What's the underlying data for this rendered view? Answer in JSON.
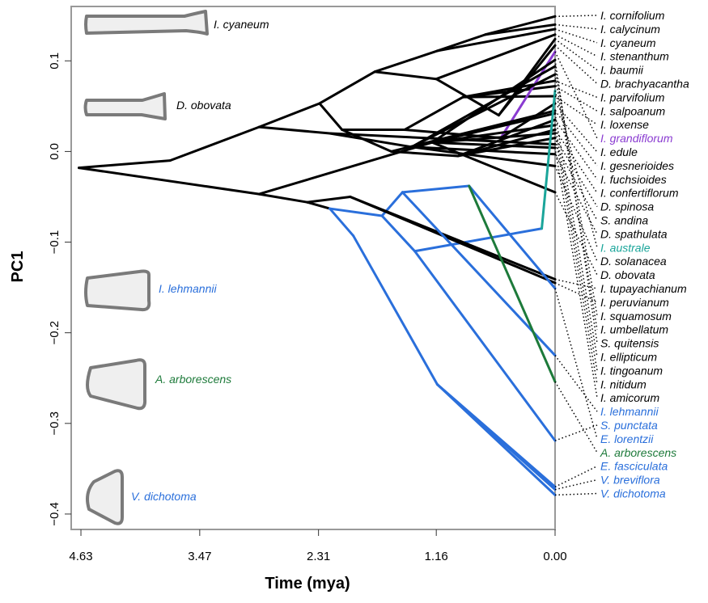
{
  "chart_data": {
    "type": "phenogram",
    "x_label": "Time (mya)",
    "y_label": "PC1",
    "xlim": [
      4.725,
      0
    ],
    "ylim": [
      -0.417,
      0.16
    ],
    "xticks": [
      4.63,
      3.47,
      2.31,
      1.16,
      {
        "value": 0,
        "label": "0.00"
      }
    ],
    "yticks": [
      {
        "value": -0.4,
        "label": "−0.4"
      },
      {
        "value": -0.3,
        "label": "−0.3"
      },
      {
        "value": -0.2,
        "label": "−0.2"
      },
      {
        "value": -0.1,
        "label": "−0.1"
      },
      {
        "value": 0,
        "label": "0.0"
      },
      0.1
    ],
    "branch_color": "#000000",
    "branches": [
      {
        "time": [
          4.65,
          3.76
        ],
        "pc1": [
          -0.018,
          -0.01
        ]
      },
      {
        "time": [
          4.65,
          2.89
        ],
        "pc1": [
          -0.018,
          -0.047
        ]
      },
      {
        "time": [
          3.76,
          2.89
        ],
        "pc1": [
          -0.01,
          0.027
        ]
      },
      {
        "time": [
          2.89,
          2.3
        ],
        "pc1": [
          0.027,
          0.053
        ]
      },
      {
        "time": [
          2.89,
          2.2
        ],
        "pc1": [
          0.027,
          0.02
        ]
      },
      {
        "time": [
          2.3,
          1.76
        ],
        "pc1": [
          0.053,
          0.088
        ]
      },
      {
        "time": [
          2.3,
          2.08
        ],
        "pc1": [
          0.053,
          0.024
        ]
      },
      {
        "time": [
          1.76,
          1.15
        ],
        "pc1": [
          0.088,
          0.111
        ]
      },
      {
        "time": [
          1.76,
          1.16
        ],
        "pc1": [
          0.088,
          0.08
        ]
      },
      {
        "time": [
          1.15,
          0.68
        ],
        "pc1": [
          0.111,
          0.129
        ]
      },
      {
        "time": [
          1.16,
          0.55
        ],
        "pc1": [
          0.08,
          0.04
        ]
      },
      {
        "time": [
          2.08,
          1.47
        ],
        "pc1": [
          0.024,
          0.024
        ]
      },
      {
        "time": [
          2.08,
          1.6
        ],
        "pc1": [
          0.024,
          0.0
        ]
      },
      {
        "time": [
          1.47,
          0.9
        ],
        "pc1": [
          0.024,
          0.06
        ]
      },
      {
        "time": [
          1.47,
          0.53
        ],
        "pc1": [
          0.024,
          0.015
        ]
      },
      {
        "time": [
          1.6,
          0.95
        ],
        "pc1": [
          0.0,
          -0.005
        ]
      },
      {
        "time": [
          2.2,
          1.4
        ],
        "pc1": [
          0.02,
          0.005
        ]
      },
      {
        "time": [
          2.89,
          2.42
        ],
        "pc1": [
          -0.047,
          -0.056
        ]
      },
      {
        "time": [
          2.89,
          1.2
        ],
        "pc1": [
          -0.047,
          0.01
        ]
      },
      {
        "time": [
          2.42,
          2.2
        ],
        "pc1": [
          -0.056,
          -0.063
        ]
      },
      {
        "time": [
          2.42,
          2.0
        ],
        "pc1": [
          -0.056,
          -0.05
        ]
      },
      {
        "time": [
          2.2,
          1.97
        ],
        "pc1": [
          -0.063,
          -0.093
        ],
        "color": "#2a6fdb"
      },
      {
        "time": [
          2.2,
          1.69
        ],
        "pc1": [
          -0.063,
          -0.071
        ],
        "color": "#2a6fdb"
      },
      {
        "time": [
          1.97,
          1.15
        ],
        "pc1": [
          -0.093,
          -0.257
        ],
        "color": "#2a6fdb"
      },
      {
        "time": [
          1.69,
          1.37
        ],
        "pc1": [
          -0.071,
          -0.11
        ],
        "color": "#2a6fdb"
      },
      {
        "time": [
          1.69,
          1.49
        ],
        "pc1": [
          -0.071,
          -0.045
        ],
        "color": "#2a6fdb"
      },
      {
        "time": [
          1.49,
          0.84
        ],
        "pc1": [
          -0.045,
          -0.038
        ],
        "color": "#2a6fdb"
      },
      {
        "time": [
          1.37,
          0.13
        ],
        "pc1": [
          -0.11,
          -0.085
        ],
        "color": "#2a6fdb"
      },
      {
        "time": [
          0.68,
          0
        ],
        "pc1": [
          0.129,
          0.149
        ]
      },
      {
        "time": [
          0.68,
          0
        ],
        "pc1": [
          0.129,
          0.14
        ]
      },
      {
        "time": [
          1.15,
          0
        ],
        "pc1": [
          0.111,
          0.135
        ]
      },
      {
        "time": [
          1.16,
          0
        ],
        "pc1": [
          0.08,
          0.129
        ]
      },
      {
        "time": [
          0.55,
          0
        ],
        "pc1": [
          0.04,
          0.124
        ]
      },
      {
        "time": [
          0.55,
          0
        ],
        "pc1": [
          0.04,
          0.117
        ]
      },
      {
        "time": [
          0.9,
          0
        ],
        "pc1": [
          0.06,
          0.078
        ]
      },
      {
        "time": [
          0.9,
          0
        ],
        "pc1": [
          0.06,
          0.072
        ]
      },
      {
        "time": [
          0.9,
          0
        ],
        "pc1": [
          0.06,
          0.061
        ]
      },
      {
        "time": [
          0.53,
          0
        ],
        "pc1": [
          0.015,
          0.11
        ],
        "color": "#8a3bd1"
      },
      {
        "time": [
          0.53,
          0
        ],
        "pc1": [
          0.015,
          0.053
        ]
      },
      {
        "time": [
          1.6,
          0
        ],
        "pc1": [
          0.0,
          0.045
        ]
      },
      {
        "time": [
          0.95,
          0
        ],
        "pc1": [
          -0.005,
          0.035
        ]
      },
      {
        "time": [
          0.95,
          0
        ],
        "pc1": [
          -0.005,
          0.024
        ]
      },
      {
        "time": [
          0.95,
          0
        ],
        "pc1": [
          -0.005,
          0.015
        ]
      },
      {
        "time": [
          2.2,
          0
        ],
        "pc1": [
          0.02,
          0.008
        ]
      },
      {
        "time": [
          1.4,
          0
        ],
        "pc1": [
          0.005,
          -0.003
        ]
      },
      {
        "time": [
          1.4,
          0
        ],
        "pc1": [
          0.005,
          -0.016
        ]
      },
      {
        "time": [
          1.4,
          0
        ],
        "pc1": [
          0.005,
          0.094
        ]
      },
      {
        "time": [
          1.4,
          0
        ],
        "pc1": [
          0.005,
          0.085
        ]
      },
      {
        "time": [
          1.2,
          0
        ],
        "pc1": [
          0.01,
          -0.045
        ]
      },
      {
        "time": [
          1.2,
          0
        ],
        "pc1": [
          0.01,
          0.101
        ]
      },
      {
        "time": [
          1.2,
          0
        ],
        "pc1": [
          0.01,
          0.042
        ]
      },
      {
        "time": [
          1.2,
          0
        ],
        "pc1": [
          0.01,
          0.029
        ]
      },
      {
        "time": [
          1.2,
          0
        ],
        "pc1": [
          0.01,
          0.02
        ]
      },
      {
        "time": [
          1.2,
          0
        ],
        "pc1": [
          0.01,
          0.004
        ]
      },
      {
        "time": [
          2.0,
          0
        ],
        "pc1": [
          -0.05,
          -0.141
        ]
      },
      {
        "time": [
          2.0,
          0
        ],
        "pc1": [
          -0.05,
          -0.145
        ]
      },
      {
        "time": [
          1.49,
          0
        ],
        "pc1": [
          -0.045,
          -0.225
        ],
        "color": "#2a6fdb"
      },
      {
        "time": [
          1.37,
          0
        ],
        "pc1": [
          -0.11,
          -0.319
        ],
        "color": "#2a6fdb"
      },
      {
        "time": [
          0.84,
          0
        ],
        "pc1": [
          -0.038,
          -0.151
        ],
        "color": "#2a6fdb"
      },
      {
        "time": [
          0.84,
          0
        ],
        "pc1": [
          -0.038,
          -0.254
        ],
        "color": "#1d7a3a"
      },
      {
        "time": [
          0.13,
          0
        ],
        "pc1": [
          -0.085,
          0.067
        ],
        "color": "#1aa59a"
      },
      {
        "time": [
          1.15,
          0
        ],
        "pc1": [
          -0.257,
          -0.37
        ],
        "color": "#2a6fdb"
      },
      {
        "time": [
          1.15,
          0
        ],
        "pc1": [
          -0.257,
          -0.373
        ],
        "color": "#2a6fdb"
      },
      {
        "time": [
          1.15,
          0
        ],
        "pc1": [
          -0.257,
          -0.379
        ],
        "color": "#2a6fdb"
      }
    ],
    "tips": [
      {
        "name": "I. cornifolium",
        "color": "#000000",
        "pc1": 0.149
      },
      {
        "name": "I. calycinum",
        "color": "#000000",
        "pc1": 0.14
      },
      {
        "name": "I. cyaneum",
        "color": "#000000",
        "pc1": 0.135
      },
      {
        "name": "I. stenanthum",
        "color": "#000000",
        "pc1": 0.129
      },
      {
        "name": "I. baumii",
        "color": "#000000",
        "pc1": 0.124
      },
      {
        "name": "D. brachyacantha",
        "color": "#000000",
        "pc1": 0.117
      },
      {
        "name": "I. parvifolium",
        "color": "#000000",
        "pc1": 0.078
      },
      {
        "name": "I. salpoanum",
        "color": "#000000",
        "pc1": 0.072
      },
      {
        "name": "I. loxense",
        "color": "#000000",
        "pc1": 0.061
      },
      {
        "name": "I. grandiflorum",
        "color": "#8a3bd1",
        "pc1": 0.11
      },
      {
        "name": "I. edule",
        "color": "#000000",
        "pc1": 0.053
      },
      {
        "name": "I. gesnerioides",
        "color": "#000000",
        "pc1": 0.045
      },
      {
        "name": "I. fuchsioides",
        "color": "#000000",
        "pc1": 0.035
      },
      {
        "name": "I. confertiflorum",
        "color": "#000000",
        "pc1": 0.024
      },
      {
        "name": "D. spinosa",
        "color": "#000000",
        "pc1": 0.015
      },
      {
        "name": "S. andina",
        "color": "#000000",
        "pc1": 0.008
      },
      {
        "name": "D. spathulata",
        "color": "#000000",
        "pc1": -0.003
      },
      {
        "name": "I. australe",
        "color": "#1aa59a",
        "pc1": 0.067
      },
      {
        "name": "D. solanacea",
        "color": "#000000",
        "pc1": -0.016
      },
      {
        "name": "D. obovata",
        "color": "#000000",
        "pc1": -0.045
      },
      {
        "name": "I. tupayachianum",
        "color": "#000000",
        "pc1": -0.141
      },
      {
        "name": "I. peruvianum",
        "color": "#000000",
        "pc1": -0.145
      },
      {
        "name": "I. squamosum",
        "color": "#000000",
        "pc1": 0.094
      },
      {
        "name": "I. umbellatum",
        "color": "#000000",
        "pc1": 0.085
      },
      {
        "name": "S. quitensis",
        "color": "#000000",
        "pc1": 0.101
      },
      {
        "name": "I. ellipticum",
        "color": "#000000",
        "pc1": 0.042
      },
      {
        "name": "I. tingoanum",
        "color": "#000000",
        "pc1": 0.029
      },
      {
        "name": "I. nitidum",
        "color": "#000000",
        "pc1": 0.02
      },
      {
        "name": "I. amicorum",
        "color": "#000000",
        "pc1": 0.004
      },
      {
        "name": "I. lehmannii",
        "color": "#2a6fdb",
        "pc1": -0.225
      },
      {
        "name": "S. punctata",
        "color": "#2a6fdb",
        "pc1": -0.319
      },
      {
        "name": "E. lorentzii",
        "color": "#2a6fdb",
        "pc1": -0.151
      },
      {
        "name": "A. arborescens",
        "color": "#1d7a3a",
        "pc1": -0.254
      },
      {
        "name": "E. fasciculata",
        "color": "#2a6fdb",
        "pc1": -0.37
      },
      {
        "name": "V. breviflora",
        "color": "#2a6fdb",
        "pc1": -0.373
      },
      {
        "name": "V. dichotoma",
        "color": "#2a6fdb",
        "pc1": -0.379
      }
    ],
    "annotations": [
      {
        "text": "I. cyaneum",
        "color": "#000000"
      },
      {
        "text": "D. obovata",
        "color": "#000000"
      },
      {
        "text": "I. lehmannii",
        "color": "#2a6fdb"
      },
      {
        "text": "A. arborescens",
        "color": "#1d7a3a"
      },
      {
        "text": "V. dichotoma",
        "color": "#2a6fdb"
      }
    ]
  }
}
